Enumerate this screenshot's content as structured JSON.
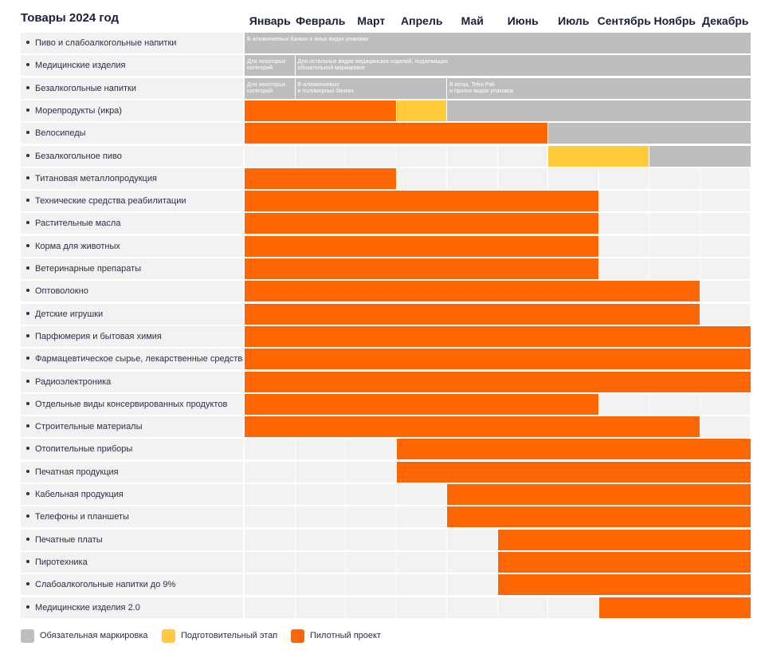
{
  "colors": {
    "mandatory": "#bdbdbd",
    "preparatory": "#ffcb3d",
    "pilot": "#ff6600",
    "empty": "#f2f2f2"
  },
  "chart_data": {
    "type": "table",
    "title": "Товары 2024 год",
    "months": [
      "Январь",
      "Февраль",
      "Март",
      "Апрель",
      "Май",
      "Июнь",
      "Июль",
      "Сентябрь",
      "Ноябрь",
      "Декабрь"
    ],
    "legend": [
      {
        "key": "mandatory",
        "label": "Обязательная маркировка"
      },
      {
        "key": "preparatory",
        "label": "Подготовительный этап"
      },
      {
        "key": "pilot",
        "label": "Пилотный проект"
      }
    ],
    "rows": [
      {
        "label": "Пиво и слабоалкогольные напитки",
        "segments": [
          {
            "start": 0,
            "end": 10,
            "type": "mandatory",
            "note": "В алюминиевых банках и иных видах упаковки"
          }
        ]
      },
      {
        "label": "Медицинские изделия",
        "segments": [
          {
            "start": 0,
            "end": 1,
            "type": "mandatory",
            "note": "Для некоторых\nкатегорий"
          },
          {
            "start": 1,
            "end": 10,
            "type": "mandatory",
            "note": "Для остальных видов медицинских изделий, подлежащих\nобязательной маркировке"
          }
        ]
      },
      {
        "label": "Безалкогольные напитки",
        "segments": [
          {
            "start": 0,
            "end": 1,
            "type": "mandatory",
            "note": "Для некоторых\nкатегорий"
          },
          {
            "start": 1,
            "end": 4,
            "type": "mandatory",
            "note": "В алюминиевых\nи полимерных банках"
          },
          {
            "start": 4,
            "end": 10,
            "type": "mandatory",
            "note": "В кегах, Tetra Pak\nи прочих видах упаковок"
          }
        ]
      },
      {
        "label": "Морепродукты (икра)",
        "segments": [
          {
            "start": 0,
            "end": 3,
            "type": "pilot"
          },
          {
            "start": 3,
            "end": 4,
            "type": "preparatory"
          },
          {
            "start": 4,
            "end": 10,
            "type": "mandatory"
          }
        ]
      },
      {
        "label": "Велосипеды",
        "segments": [
          {
            "start": 0,
            "end": 6,
            "type": "pilot"
          },
          {
            "start": 6,
            "end": 10,
            "type": "mandatory"
          }
        ]
      },
      {
        "label": "Безалкогольное пиво",
        "segments": [
          {
            "start": 6,
            "end": 8,
            "type": "preparatory"
          },
          {
            "start": 8,
            "end": 10,
            "type": "mandatory"
          }
        ]
      },
      {
        "label": "Титановая металлопродукция",
        "segments": [
          {
            "start": 0,
            "end": 3,
            "type": "pilot"
          }
        ]
      },
      {
        "label": "Технические средства реабилитации",
        "segments": [
          {
            "start": 0,
            "end": 7,
            "type": "pilot"
          }
        ]
      },
      {
        "label": "Растительные масла",
        "segments": [
          {
            "start": 0,
            "end": 7,
            "type": "pilot"
          }
        ]
      },
      {
        "label": "Корма для животных",
        "segments": [
          {
            "start": 0,
            "end": 7,
            "type": "pilot"
          }
        ]
      },
      {
        "label": "Ветеринарные препараты",
        "segments": [
          {
            "start": 0,
            "end": 7,
            "type": "pilot"
          }
        ]
      },
      {
        "label": "Оптоволокно",
        "segments": [
          {
            "start": 0,
            "end": 9,
            "type": "pilot"
          }
        ]
      },
      {
        "label": "Детские игрушки",
        "segments": [
          {
            "start": 0,
            "end": 9,
            "type": "pilot"
          }
        ]
      },
      {
        "label": "Парфюмерия и бытовая химия",
        "segments": [
          {
            "start": 0,
            "end": 10,
            "type": "pilot"
          }
        ]
      },
      {
        "label": "Фармацевтическое сырье, лекарственные средства",
        "segments": [
          {
            "start": 0,
            "end": 10,
            "type": "pilot"
          }
        ]
      },
      {
        "label": "Радиоэлектроника",
        "segments": [
          {
            "start": 0,
            "end": 10,
            "type": "pilot"
          }
        ]
      },
      {
        "label": "Отдельные виды консервированных продуктов",
        "segments": [
          {
            "start": 0,
            "end": 7,
            "type": "pilot"
          }
        ]
      },
      {
        "label": "Строительные материалы",
        "segments": [
          {
            "start": 0,
            "end": 9,
            "type": "pilot"
          }
        ]
      },
      {
        "label": "Отопительные приборы",
        "segments": [
          {
            "start": 3,
            "end": 10,
            "type": "pilot"
          }
        ]
      },
      {
        "label": "Печатная продукция",
        "segments": [
          {
            "start": 3,
            "end": 10,
            "type": "pilot"
          }
        ]
      },
      {
        "label": "Кабельная продукция",
        "segments": [
          {
            "start": 4,
            "end": 10,
            "type": "pilot"
          }
        ]
      },
      {
        "label": "Телефоны и планшеты",
        "segments": [
          {
            "start": 4,
            "end": 10,
            "type": "pilot"
          }
        ]
      },
      {
        "label": "Печатные платы",
        "segments": [
          {
            "start": 5,
            "end": 10,
            "type": "pilot"
          }
        ]
      },
      {
        "label": "Пиротехника",
        "segments": [
          {
            "start": 5,
            "end": 10,
            "type": "pilot"
          }
        ]
      },
      {
        "label": "Слабоалкогольные напитки до 9%",
        "segments": [
          {
            "start": 5,
            "end": 10,
            "type": "pilot"
          }
        ]
      },
      {
        "label": "Медицинские изделия 2.0",
        "segments": [
          {
            "start": 7,
            "end": 10,
            "type": "pilot"
          }
        ]
      }
    ]
  }
}
